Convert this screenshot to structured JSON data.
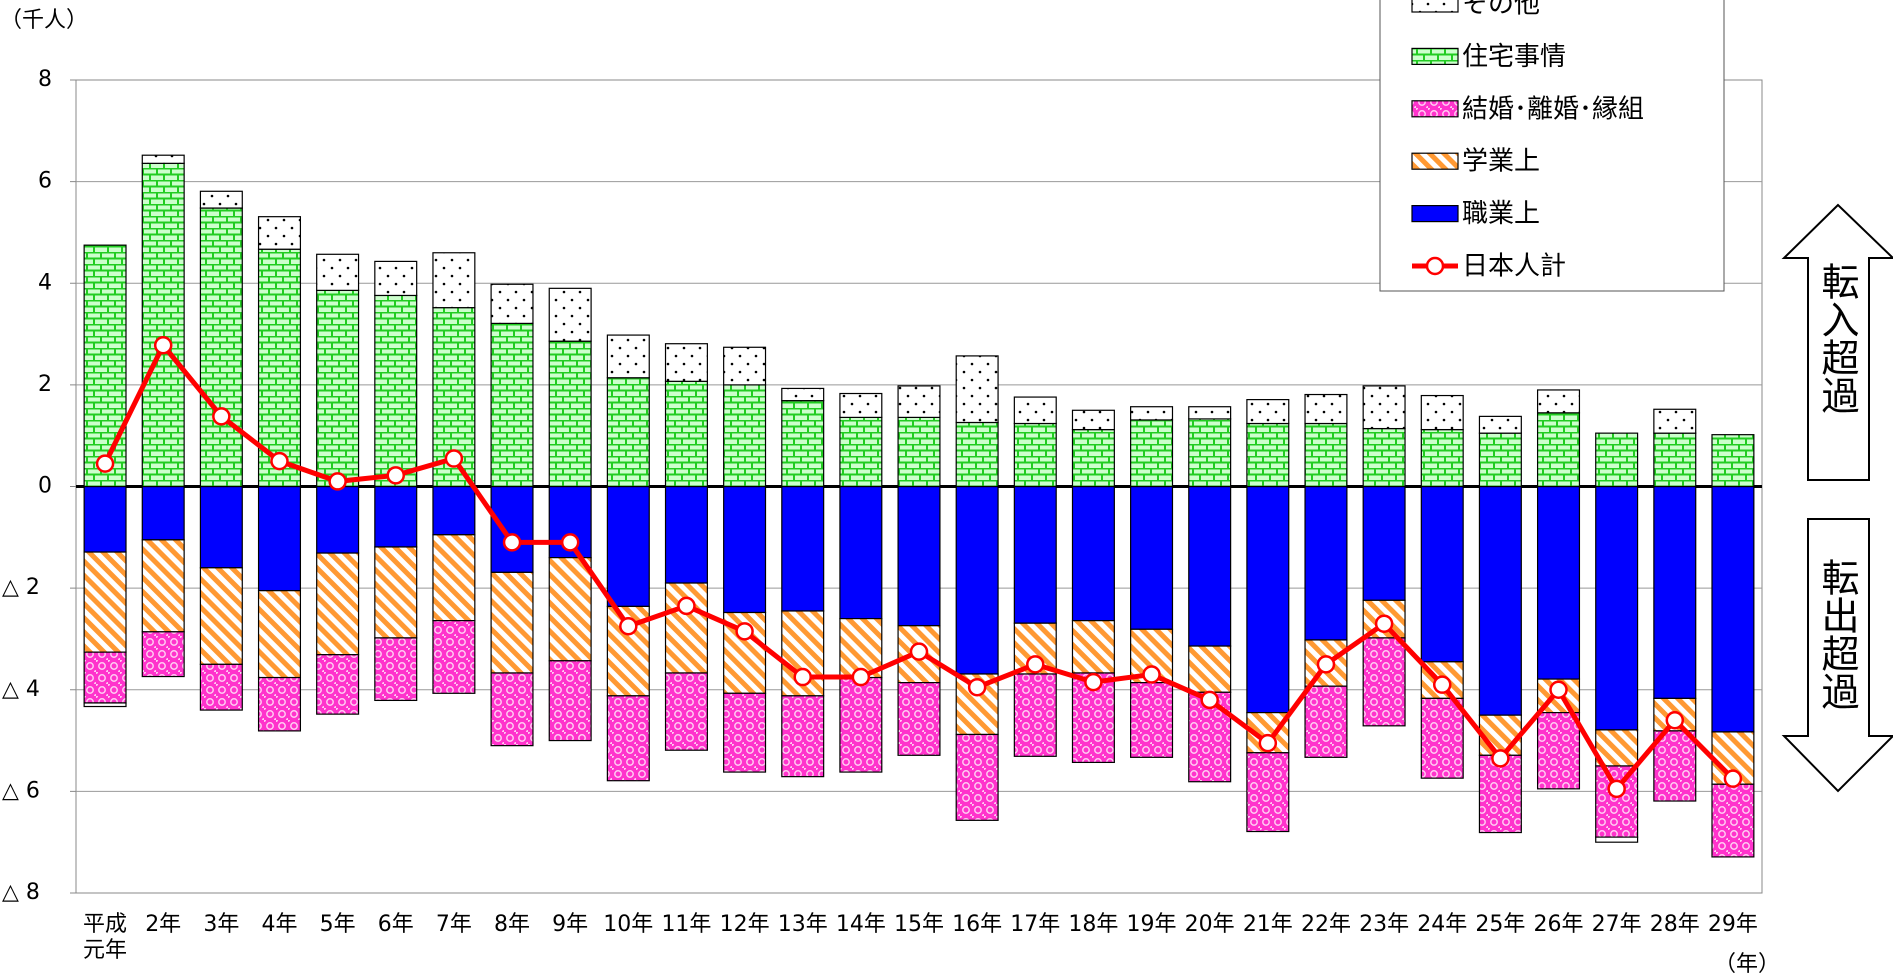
{
  "chart_data": {
    "type": "bar",
    "stacked": true,
    "y_axis_label": "（千人）",
    "x_axis_label": "（年）",
    "annotations": [
      "転入超過",
      "転出超過"
    ],
    "categories": [
      "平成元年",
      "2年",
      "3年",
      "4年",
      "5年",
      "6年",
      "7年",
      "8年",
      "9年",
      "10年",
      "11年",
      "12年",
      "13年",
      "14年",
      "15年",
      "16年",
      "17年",
      "18年",
      "19年",
      "20年",
      "21年",
      "22年",
      "23年",
      "24年",
      "25年",
      "26年",
      "27年",
      "28年",
      "29年"
    ],
    "series": [
      {
        "name": "職業上",
        "color": "#0000ff",
        "pattern": "solid",
        "values": [
          -1.29,
          -1.05,
          -1.6,
          -2.05,
          -1.31,
          -1.19,
          -0.95,
          -1.69,
          -1.4,
          -2.36,
          -1.9,
          -2.48,
          -2.45,
          -2.6,
          -2.74,
          -3.69,
          -2.69,
          -2.64,
          -2.81,
          -3.14,
          -4.45,
          -3.02,
          -2.24,
          -3.45,
          -4.5,
          -3.79,
          -4.79,
          -4.17,
          -4.83
        ]
      },
      {
        "name": "学業上",
        "color": "#ff9933",
        "pattern": "stripes",
        "values": [
          -1.97,
          -1.81,
          -1.9,
          -1.71,
          -2.0,
          -1.79,
          -1.69,
          -1.98,
          -2.03,
          -1.76,
          -1.77,
          -1.59,
          -1.67,
          -1.16,
          -1.12,
          -1.19,
          -1.0,
          -1.03,
          -1.05,
          -0.91,
          -0.79,
          -0.91,
          -0.74,
          -0.72,
          -0.79,
          -0.66,
          -0.71,
          -0.64,
          -1.03
        ]
      },
      {
        "name": "結婚･離婚･縁組",
        "color": "#ff33cc",
        "pattern": "dots",
        "values": [
          -1.0,
          -0.88,
          -0.9,
          -1.05,
          -1.17,
          -1.23,
          -1.43,
          -1.43,
          -1.57,
          -1.67,
          -1.52,
          -1.55,
          -1.59,
          -1.86,
          -1.43,
          -1.69,
          -1.62,
          -1.76,
          -1.47,
          -1.76,
          -1.55,
          -1.4,
          -1.73,
          -1.57,
          -1.52,
          -1.5,
          -1.4,
          -1.38,
          -1.43
        ]
      },
      {
        "name": "住宅事情",
        "color": "#33dd33",
        "pattern": "bricks",
        "values": [
          4.75,
          6.36,
          5.48,
          4.67,
          3.86,
          3.76,
          3.52,
          3.21,
          2.86,
          2.14,
          2.07,
          2.0,
          1.69,
          1.36,
          1.36,
          1.26,
          1.24,
          1.12,
          1.31,
          1.33,
          1.24,
          1.24,
          1.14,
          1.12,
          1.05,
          1.45,
          1.05,
          1.05,
          1.02
        ]
      },
      {
        "name": "その他",
        "color": "#000000",
        "pattern": "sparse-dots",
        "values": [
          -0.07,
          0.16,
          0.33,
          0.64,
          0.71,
          0.67,
          1.08,
          0.77,
          1.04,
          0.84,
          0.74,
          0.74,
          0.24,
          0.47,
          0.62,
          1.31,
          0.52,
          0.38,
          0.26,
          0.24,
          0.47,
          0.57,
          0.84,
          0.67,
          0.33,
          0.45,
          -0.1,
          0.47,
          0
        ]
      },
      {
        "name": "日本人計",
        "color": "#ff0000",
        "type": "line",
        "values": [
          0.45,
          2.78,
          1.38,
          0.5,
          0.1,
          0.22,
          0.55,
          -1.1,
          -1.1,
          -2.75,
          -2.35,
          -2.85,
          -3.75,
          -3.75,
          -3.25,
          -3.95,
          -3.5,
          -3.85,
          -3.7,
          -4.2,
          -5.05,
          -3.5,
          -2.7,
          -3.9,
          -5.35,
          -4.0,
          -5.95,
          -4.6,
          -5.75
        ]
      }
    ],
    "ylim": [
      -8,
      8
    ],
    "yticks": [
      {
        "value": -8,
        "label": "△ 8"
      },
      {
        "value": -6,
        "label": "△ 6"
      },
      {
        "value": -4,
        "label": "△ 4"
      },
      {
        "value": -2,
        "label": "△ 2"
      },
      0,
      2,
      4,
      6,
      8
    ],
    "grid": true,
    "legend": "top-right"
  }
}
